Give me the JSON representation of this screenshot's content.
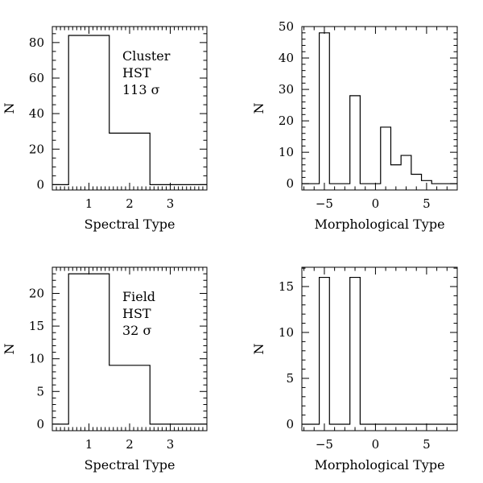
{
  "chart_data": [
    {
      "id": "top-left",
      "type": "bar",
      "xlabel": "Spectral Type",
      "ylabel": "N",
      "xlim": [
        0.1,
        3.9
      ],
      "ylim": [
        -3,
        89
      ],
      "xticks": [
        1,
        2,
        3
      ],
      "xminor": 0.1,
      "yticks": [
        0,
        20,
        40,
        60,
        80
      ],
      "yminor": 5,
      "bins": [
        {
          "x0": 0.1,
          "x1": 0.5,
          "value": 0
        },
        {
          "x0": 0.5,
          "x1": 1.5,
          "value": 84
        },
        {
          "x0": 1.5,
          "x1": 2.5,
          "value": 29
        },
        {
          "x0": 2.5,
          "x1": 3.9,
          "value": 0
        }
      ],
      "annotation": [
        "Cluster",
        "HST",
        "113 σ"
      ]
    },
    {
      "id": "top-right",
      "type": "bar",
      "xlabel": "Morphological Type",
      "ylabel": "N",
      "xlim": [
        -7.2,
        8
      ],
      "ylim": [
        -2,
        50
      ],
      "xticks": [
        -5,
        0,
        5
      ],
      "xminor": 1,
      "yticks": [
        0,
        10,
        20,
        30,
        40,
        50
      ],
      "yminor": 2,
      "bins": [
        {
          "x0": -7.2,
          "x1": -5.5,
          "value": 0
        },
        {
          "x0": -5.5,
          "x1": -4.5,
          "value": 48
        },
        {
          "x0": -4.5,
          "x1": -2.5,
          "value": 0
        },
        {
          "x0": -2.5,
          "x1": -1.5,
          "value": 28
        },
        {
          "x0": -1.5,
          "x1": 0.5,
          "value": 0
        },
        {
          "x0": 0.5,
          "x1": 1.5,
          "value": 18
        },
        {
          "x0": 1.5,
          "x1": 2.5,
          "value": 6
        },
        {
          "x0": 2.5,
          "x1": 3.5,
          "value": 9
        },
        {
          "x0": 3.5,
          "x1": 4.5,
          "value": 3
        },
        {
          "x0": 4.5,
          "x1": 5.5,
          "value": 1
        },
        {
          "x0": 5.5,
          "x1": 8,
          "value": 0
        }
      ],
      "annotation": []
    },
    {
      "id": "bottom-left",
      "type": "bar",
      "xlabel": "Spectral Type",
      "ylabel": "N",
      "xlim": [
        0.1,
        3.9
      ],
      "ylim": [
        -1,
        24
      ],
      "xticks": [
        1,
        2,
        3
      ],
      "xminor": 0.1,
      "yticks": [
        0,
        5,
        10,
        15,
        20
      ],
      "yminor": 1,
      "bins": [
        {
          "x0": 0.1,
          "x1": 0.5,
          "value": 0
        },
        {
          "x0": 0.5,
          "x1": 1.5,
          "value": 23
        },
        {
          "x0": 1.5,
          "x1": 2.5,
          "value": 9
        },
        {
          "x0": 2.5,
          "x1": 3.9,
          "value": 0
        }
      ],
      "annotation": [
        "Field",
        "HST",
        "32 σ"
      ]
    },
    {
      "id": "bottom-right",
      "type": "bar",
      "xlabel": "Morphological Type",
      "ylabel": "N",
      "xlim": [
        -7.2,
        8
      ],
      "ylim": [
        -0.7,
        17.1
      ],
      "xticks": [
        -5,
        0,
        5
      ],
      "xminor": 1,
      "yticks": [
        0,
        5,
        10,
        15
      ],
      "yminor": 1,
      "bins": [
        {
          "x0": -7.2,
          "x1": -5.5,
          "value": 0
        },
        {
          "x0": -5.5,
          "x1": -4.5,
          "value": 16
        },
        {
          "x0": -4.5,
          "x1": -2.5,
          "value": 0
        },
        {
          "x0": -2.5,
          "x1": -1.5,
          "value": 16
        },
        {
          "x0": -1.5,
          "x1": 8,
          "value": 0
        }
      ],
      "annotation": []
    }
  ]
}
